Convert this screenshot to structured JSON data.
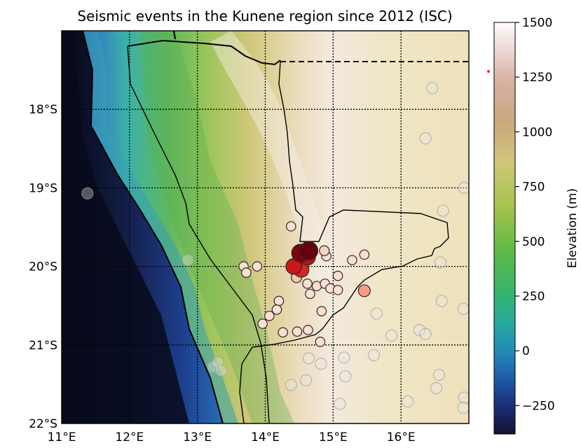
{
  "chart_data": {
    "type": "scatter",
    "title": "Seismic events in the Kunene region since 2012 (ISC)",
    "xlabel": "",
    "ylabel": "",
    "x_range": [
      11,
      17
    ],
    "y_range": [
      -22,
      -17
    ],
    "x_ticks": [
      {
        "value": 11,
        "label": "11°E"
      },
      {
        "value": 12,
        "label": "12°E"
      },
      {
        "value": 13,
        "label": "13°E"
      },
      {
        "value": 14,
        "label": "14°E"
      },
      {
        "value": 15,
        "label": "15°E"
      },
      {
        "value": 16,
        "label": "16°E"
      }
    ],
    "y_ticks": [
      {
        "value": -18,
        "label": "18°S"
      },
      {
        "value": -19,
        "label": "19°S"
      },
      {
        "value": -20,
        "label": "20°S"
      },
      {
        "value": -21,
        "label": "21°S"
      },
      {
        "value": -22,
        "label": "22°S"
      }
    ],
    "grid": true,
    "colorbar": {
      "label": "Elevation (m)",
      "range": [
        -380,
        1500
      ],
      "ticks": [
        -250,
        0,
        250,
        500,
        750,
        1000,
        1250,
        1500
      ]
    },
    "series": [
      {
        "points": [
          {
            "lon": 14.38,
            "lat": -19.49,
            "mag": 0.1
          },
          {
            "lon": 14.64,
            "lat": -19.8,
            "mag": 1.0
          },
          {
            "lon": 14.52,
            "lat": -19.83,
            "mag": 0.95
          },
          {
            "lon": 14.62,
            "lat": -19.88,
            "mag": 0.8
          },
          {
            "lon": 14.87,
            "lat": -19.8,
            "mag": 0.15
          },
          {
            "lon": 14.9,
            "lat": -19.87,
            "mag": 0.1
          },
          {
            "lon": 15.28,
            "lat": -19.92,
            "mag": 0.1
          },
          {
            "lon": 15.46,
            "lat": -19.85,
            "mag": 0.1
          },
          {
            "lon": 14.42,
            "lat": -20.0,
            "mag": 0.75
          },
          {
            "lon": 14.53,
            "lat": -20.04,
            "mag": 0.7
          },
          {
            "lon": 13.68,
            "lat": -20.0,
            "mag": 0.1
          },
          {
            "lon": 13.88,
            "lat": -20.0,
            "mag": 0.1
          },
          {
            "lon": 13.72,
            "lat": -20.08,
            "mag": 0.1
          },
          {
            "lon": 14.46,
            "lat": -20.14,
            "mag": 0.2
          },
          {
            "lon": 14.62,
            "lat": -20.22,
            "mag": 0.1
          },
          {
            "lon": 14.76,
            "lat": -20.25,
            "mag": 0.1
          },
          {
            "lon": 14.88,
            "lat": -20.22,
            "mag": 0.1
          },
          {
            "lon": 14.96,
            "lat": -20.28,
            "mag": 0.1
          },
          {
            "lon": 15.07,
            "lat": -20.12,
            "mag": 0.1
          },
          {
            "lon": 15.07,
            "lat": -20.3,
            "mag": 0.1
          },
          {
            "lon": 14.66,
            "lat": -20.35,
            "mag": 0.1
          },
          {
            "lon": 15.46,
            "lat": -20.31,
            "mag": 0.35
          },
          {
            "lon": 14.2,
            "lat": -20.44,
            "mag": 0.1
          },
          {
            "lon": 14.17,
            "lat": -20.55,
            "mag": 0.1
          },
          {
            "lon": 14.06,
            "lat": -20.63,
            "mag": 0.1
          },
          {
            "lon": 13.96,
            "lat": -20.73,
            "mag": 0.1
          },
          {
            "lon": 14.83,
            "lat": -20.57,
            "mag": 0.1
          },
          {
            "lon": 14.26,
            "lat": -20.84,
            "mag": 0.1
          },
          {
            "lon": 14.47,
            "lat": -20.83,
            "mag": 0.1
          },
          {
            "lon": 14.63,
            "lat": -20.81,
            "mag": 0.1
          },
          {
            "lon": 14.81,
            "lat": -20.96,
            "mag": 0.1
          }
        ]
      },
      {
        "points": [
          {
            "lon": 11.38,
            "lat": -19.07
          },
          {
            "lon": 12.86,
            "lat": -19.92
          },
          {
            "lon": 16.93,
            "lat": -19.0
          },
          {
            "lon": 16.58,
            "lat": -19.95
          },
          {
            "lon": 16.62,
            "lat": -19.29
          },
          {
            "lon": 16.36,
            "lat": -18.37
          },
          {
            "lon": 16.46,
            "lat": -17.73
          },
          {
            "lon": 15.64,
            "lat": -20.6
          },
          {
            "lon": 15.86,
            "lat": -20.88
          },
          {
            "lon": 16.27,
            "lat": -20.81
          },
          {
            "lon": 16.6,
            "lat": -20.44
          },
          {
            "lon": 16.92,
            "lat": -20.54
          },
          {
            "lon": 16.36,
            "lat": -20.86
          },
          {
            "lon": 16.56,
            "lat": -21.38
          },
          {
            "lon": 16.93,
            "lat": -21.67
          },
          {
            "lon": 16.92,
            "lat": -21.8
          },
          {
            "lon": 16.52,
            "lat": -21.55
          },
          {
            "lon": 14.38,
            "lat": -21.51
          },
          {
            "lon": 15.6,
            "lat": -21.13
          },
          {
            "lon": 15.18,
            "lat": -21.4
          },
          {
            "lon": 14.6,
            "lat": -21.45
          },
          {
            "lon": 15.1,
            "lat": -21.75
          },
          {
            "lon": 16.1,
            "lat": -21.72
          },
          {
            "lon": 13.23,
            "lat": -21.28
          },
          {
            "lon": 13.3,
            "lat": -21.22
          },
          {
            "lon": 13.35,
            "lat": -21.33
          },
          {
            "lon": 14.64,
            "lat": -21.17
          },
          {
            "lon": 15.16,
            "lat": -21.16
          },
          {
            "lon": 14.82,
            "lat": -21.24
          }
        ]
      }
    ]
  }
}
